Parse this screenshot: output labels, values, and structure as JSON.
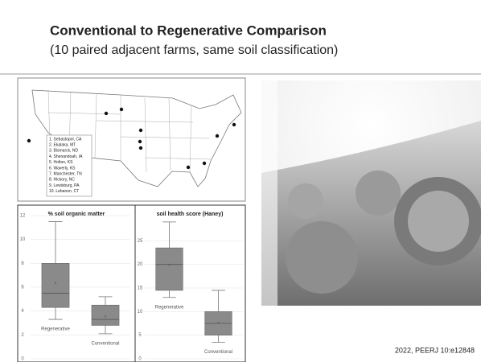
{
  "header": {
    "title": "Conventional to Regenerative Comparison",
    "subtitle": "(10 paired adjacent farms, same soil classification)"
  },
  "map": {
    "sites": [
      "1. Sebastopol, CA",
      "2. Ekalaka, MT",
      "3. Bismarck, ND",
      "4. Shenandoah, IA",
      "5. Holton, KS",
      "6. Waverly, KS",
      "7. Manchester, TN",
      "8. Hickory, NC",
      "9. Lewisburg, PA",
      "10. Lebanon, CT"
    ]
  },
  "chart_data": [
    {
      "type": "box",
      "title": "% soil organic matter",
      "categories": [
        "Regenerative",
        "Conventional"
      ],
      "color": "#8a8a8a",
      "boxes": [
        {
          "low": 3.3,
          "q1": 4.3,
          "median": 5.5,
          "q3": 8,
          "high": 11.5,
          "mean": 6.3
        },
        {
          "low": 2.1,
          "q1": 2.8,
          "median": 3.3,
          "q3": 4.5,
          "high": 5.2,
          "mean": 3.5
        }
      ],
      "ylim": [
        0,
        12
      ],
      "yticks": [
        0,
        2,
        4,
        6,
        8,
        10,
        12
      ],
      "grid": true
    },
    {
      "type": "box",
      "title": "soil health score (Haney)",
      "categories": [
        "Regenerative",
        "Conventional"
      ],
      "color": "#8a8a8a",
      "boxes": [
        {
          "low": 13,
          "q1": 14.5,
          "median": 20,
          "q3": 23.5,
          "high": 29,
          "mean": 19.8
        },
        {
          "low": 3.5,
          "q1": 5,
          "median": 7.5,
          "q3": 10,
          "high": 14.5,
          "mean": 7.5
        }
      ],
      "ylim": [
        0,
        30
      ],
      "yticks": [
        0,
        5,
        10,
        15,
        20,
        25
      ],
      "grid": true
    }
  ],
  "citation": "2022, PEERJ 10:e12848"
}
